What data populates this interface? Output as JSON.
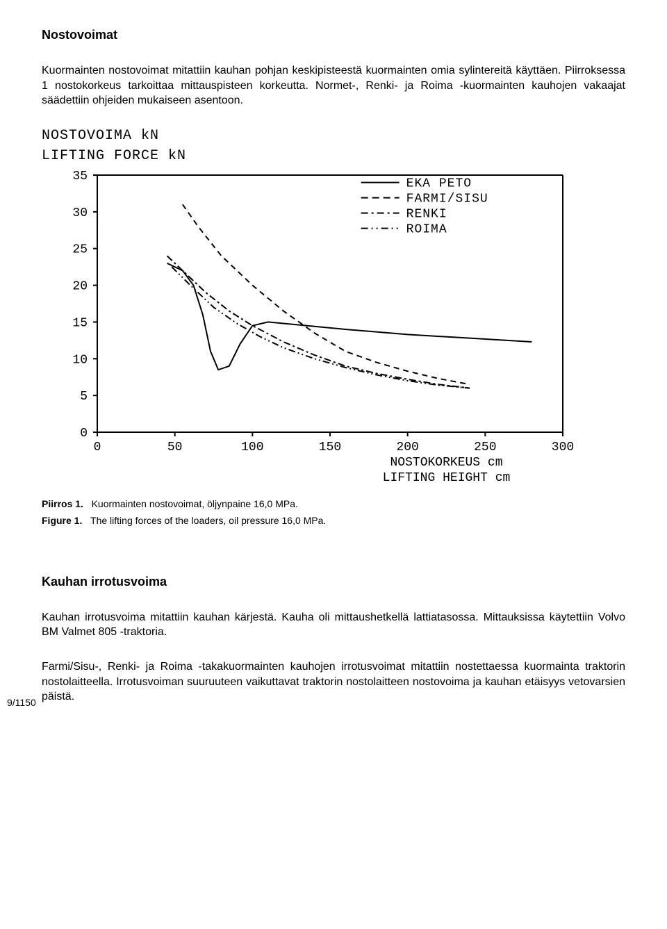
{
  "heading1": "Nostovoimat",
  "para1": "Kuormainten nostovoimat mitattiin kauhan pohjan keskipisteestä kuormainten omia sylintereitä käyttäen. Piirroksessa 1 nostokorkeus tarkoittaa mittauspisteen korkeutta. Normet-, Renki- ja Roima -kuormainten kauhojen vakaajat säädettiin ohjeiden mukaiseen asentoon.",
  "chart": {
    "type": "line",
    "y_title_1": "NOSTOVOIMA kN",
    "y_title_2": "LIFTING FORCE kN",
    "x_label_1": "NOSTOKORKEUS cm",
    "x_label_2": "LIFTING HEIGHT cm",
    "xlim": [
      0,
      300
    ],
    "ylim": [
      0,
      35
    ],
    "xticks": [
      0,
      50,
      100,
      150,
      200,
      250,
      300
    ],
    "yticks": [
      0,
      5,
      10,
      15,
      20,
      25,
      30,
      35
    ],
    "background_color": "#ffffff",
    "axis_color": "#000000",
    "tick_fontsize": 18,
    "legend": [
      {
        "label": "EKA PETO",
        "dash": "solid"
      },
      {
        "label": "FARMI/SISU",
        "dash": "long-dash"
      },
      {
        "label": "RENKI",
        "dash": "dash-dot"
      },
      {
        "label": "ROIMA",
        "dash": "dash-dot-dot"
      }
    ],
    "series": {
      "eka_peto": {
        "color": "#000000",
        "width": 2,
        "dash": "none",
        "points": [
          [
            45,
            23
          ],
          [
            55,
            22
          ],
          [
            62,
            20
          ],
          [
            68,
            16
          ],
          [
            73,
            11
          ],
          [
            78,
            8.5
          ],
          [
            85,
            9
          ],
          [
            92,
            12
          ],
          [
            100,
            14.5
          ],
          [
            110,
            15
          ],
          [
            130,
            14.6
          ],
          [
            160,
            14
          ],
          [
            200,
            13.3
          ],
          [
            240,
            12.8
          ],
          [
            280,
            12.3
          ]
        ]
      },
      "farmi_sisu": {
        "color": "#000000",
        "width": 2,
        "dash": "8,6",
        "points": [
          [
            55,
            31
          ],
          [
            65,
            28
          ],
          [
            80,
            24
          ],
          [
            100,
            20
          ],
          [
            120,
            16.5
          ],
          [
            140,
            13.5
          ],
          [
            160,
            11
          ],
          [
            180,
            9.5
          ],
          [
            200,
            8.3
          ],
          [
            220,
            7.3
          ],
          [
            240,
            6.5
          ]
        ]
      },
      "renki": {
        "color": "#000000",
        "width": 2,
        "dash": "10,4,3,4",
        "points": [
          [
            45,
            24
          ],
          [
            55,
            22
          ],
          [
            70,
            19
          ],
          [
            85,
            16.5
          ],
          [
            100,
            14.5
          ],
          [
            120,
            12.3
          ],
          [
            140,
            10.5
          ],
          [
            160,
            9
          ],
          [
            180,
            8
          ],
          [
            200,
            7.2
          ],
          [
            220,
            6.5
          ],
          [
            240,
            6
          ]
        ]
      },
      "roima": {
        "color": "#000000",
        "width": 2,
        "dash": "10,4,2,4,2,4",
        "points": [
          [
            48,
            22.5
          ],
          [
            60,
            20
          ],
          [
            75,
            17
          ],
          [
            90,
            14.8
          ],
          [
            105,
            13
          ],
          [
            120,
            11.5
          ],
          [
            140,
            10
          ],
          [
            160,
            8.8
          ],
          [
            180,
            7.8
          ],
          [
            200,
            7
          ],
          [
            220,
            6.4
          ],
          [
            240,
            6
          ]
        ]
      }
    }
  },
  "caption1_label": "Piirros 1.",
  "caption1_text": "Kuormainten nostovoimat, öljynpaine 16,0 MPa.",
  "caption2_label": "Figure 1.",
  "caption2_text": "The lifting forces of the loaders, oil pressure 16,0 MPa.",
  "heading2": "Kauhan irrotusvoima",
  "para2": "Kauhan irrotusvoima mitattiin kauhan kärjestä. Kauha oli mittaushetkellä lattiatasossa. Mittauksissa käytettiin Volvo BM Valmet 805 -traktoria.",
  "para3": "Farmi/Sisu-, Renki- ja Roima -takakuormainten kauhojen irrotusvoimat mitattiin nostettaessa kuormainta traktorin nostolaitteella. Irrotusvoiman suuruuteen vaikuttavat traktorin nostolaitteen nostovoima ja kauhan etäisyys vetovarsien päistä.",
  "page_number": "9/1150"
}
